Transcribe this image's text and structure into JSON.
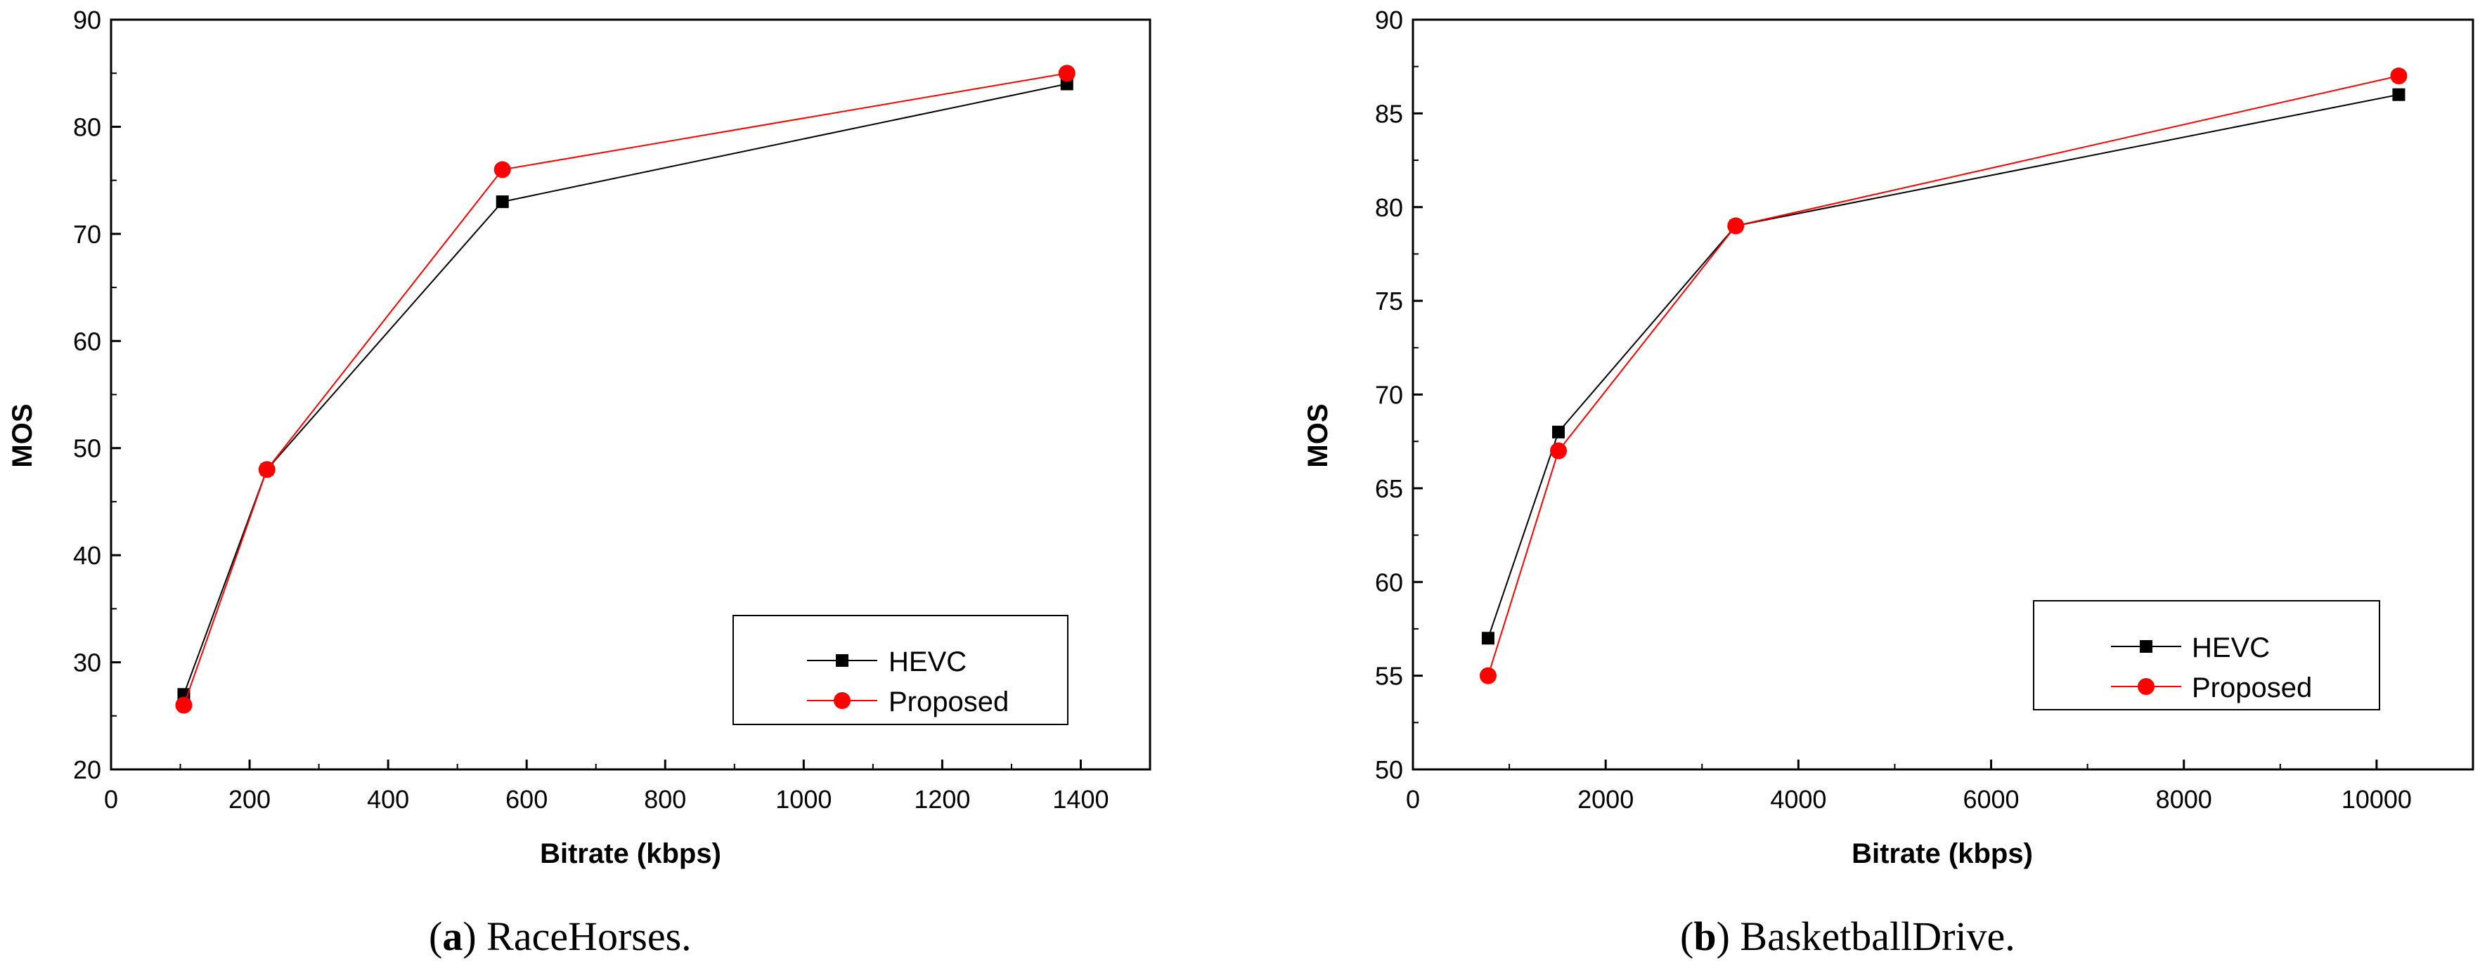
{
  "chart_data": [
    {
      "type": "line",
      "title": "",
      "xlabel": "Bitrate (kbps)",
      "ylabel": "MOS",
      "xlim": [
        0,
        1500
      ],
      "ylim": [
        20,
        90
      ],
      "xticks": [
        0,
        200,
        400,
        600,
        800,
        1000,
        1200,
        1400
      ],
      "yticks": [
        20,
        30,
        40,
        50,
        60,
        70,
        80,
        90
      ],
      "legend_position": "bottom-right",
      "caption_letter": "a",
      "caption_rest": ") RaceHorses.",
      "series": [
        {
          "name": "HEVC",
          "color": "#000000",
          "marker": "square",
          "x": [
            105,
            225,
            565,
            1380
          ],
          "y": [
            27,
            48,
            73,
            84
          ]
        },
        {
          "name": "Proposed",
          "color": "#ff0000",
          "marker": "circle",
          "x": [
            105,
            225,
            565,
            1380
          ],
          "y": [
            26,
            48,
            76,
            85
          ]
        }
      ]
    },
    {
      "type": "line",
      "title": "",
      "xlabel": "Bitrate (kbps)",
      "ylabel": "MOS",
      "xlim": [
        0,
        11000
      ],
      "ylim": [
        50,
        90
      ],
      "xticks": [
        0,
        2000,
        4000,
        6000,
        8000,
        10000
      ],
      "yticks": [
        50,
        55,
        60,
        65,
        70,
        75,
        80,
        85,
        90
      ],
      "legend_position": "bottom-right",
      "caption_letter": "b",
      "caption_rest": ") BasketballDrive.",
      "series": [
        {
          "name": "HEVC",
          "color": "#000000",
          "marker": "square",
          "x": [
            780,
            1510,
            3350,
            10230
          ],
          "y": [
            57,
            68,
            79,
            86
          ]
        },
        {
          "name": "Proposed",
          "color": "#ff0000",
          "marker": "circle",
          "x": [
            780,
            1510,
            3350,
            10230
          ],
          "y": [
            55,
            67,
            79,
            87
          ]
        }
      ]
    }
  ]
}
